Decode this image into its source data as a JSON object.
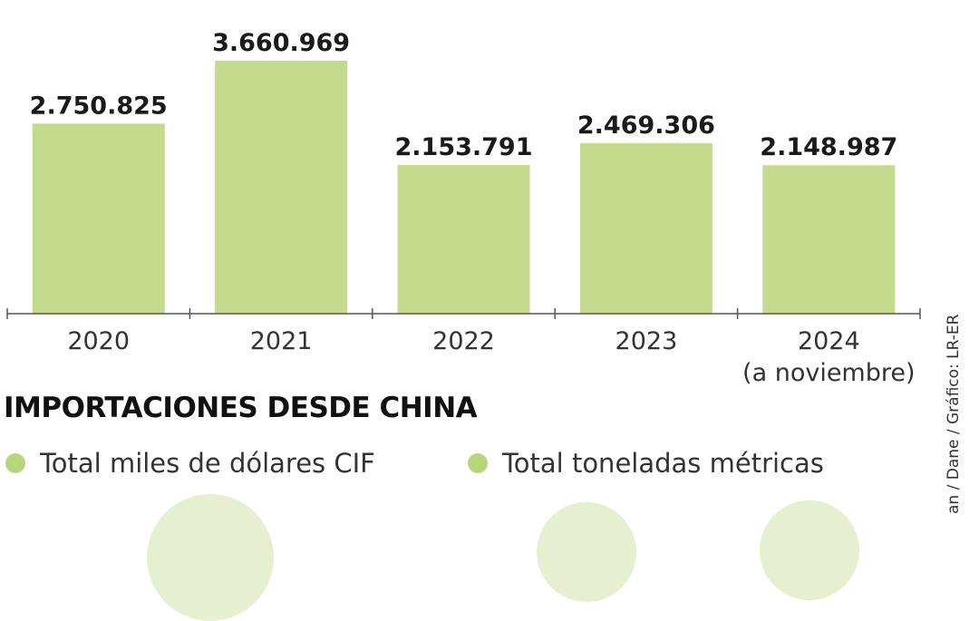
{
  "chart_data": {
    "type": "bar",
    "categories": [
      "2020",
      "2021",
      "2022",
      "2023",
      "2024"
    ],
    "category_notes": [
      "",
      "",
      "",
      "",
      "(a noviembre)"
    ],
    "values": [
      2750825,
      3660969,
      2153791,
      2469306,
      2148987
    ],
    "value_labels": [
      "2.750.825",
      "3.660.969",
      "2.153.791",
      "2.469.306",
      "2.148.987"
    ],
    "title": "",
    "xlabel": "",
    "ylabel": "",
    "ylim": [
      0,
      3660969
    ],
    "grid": false,
    "bar_color": "#c6da8e"
  },
  "section": {
    "title": "IMPORTACIONES DESDE CHINA"
  },
  "legend": {
    "items": [
      {
        "label": "Total miles de dólares CIF",
        "color": "#b9d57c"
      },
      {
        "label": "Total toneladas métricas",
        "color": "#b9d57c"
      }
    ]
  },
  "source": "an / Dane / Gráfico: LR-ER",
  "colors": {
    "bar": "#c6da8e",
    "axis": "#555555",
    "deco": "#e6efd0"
  }
}
